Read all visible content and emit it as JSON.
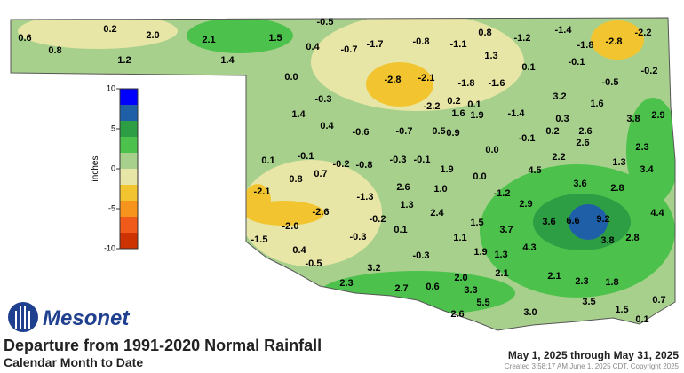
{
  "header": {
    "logo": "Mesonet",
    "title": "Departure from 1991-2020 Normal Rainfall",
    "subtitle": "Calendar Month to Date",
    "period": "May 1, 2025 through May 31, 2025",
    "created": "Created 3:58:17 AM June 1, 2025 CDT. Copyright 2025"
  },
  "legend": {
    "unit": "inches",
    "colors": [
      "#0000ff",
      "#1f5fa8",
      "#2e9e45",
      "#4cc24c",
      "#a8d08d",
      "#e8e6a6",
      "#f2c530",
      "#f7941d",
      "#f05a1a",
      "#cc3300"
    ],
    "ticks": [
      10,
      5,
      0,
      -5,
      -10
    ],
    "range": [
      -10,
      10
    ]
  },
  "map_labels": [
    "0.6",
    "0.8",
    "0.2",
    "2.0",
    "1.2",
    "2.1",
    "1.4",
    "1.5",
    "-0.5",
    "0.4",
    "-0.7",
    "-1.7",
    "-0.8",
    "-1.1",
    "0.8",
    "-1.2",
    "-1.4",
    "-1.8",
    "-2.8",
    "-2.2",
    "0.0",
    "1.3",
    "0.1",
    "-0.1",
    "-0.5",
    "-0.2",
    "-2.8",
    "-2.1",
    "-1.8",
    "-1.6",
    "3.2",
    "1.6",
    "-0.3",
    "-2.2",
    "0.2",
    "0.1",
    "1.6",
    "1.9",
    "-1.4",
    "0.3",
    "3.8",
    "2.9",
    "1.4",
    "0.4",
    "-0.6",
    "-0.7",
    "0.5",
    "0.9",
    "0.2",
    "2.6",
    "-0.1",
    "2.6",
    "2.3",
    "0.1",
    "-0.1",
    "-0.2",
    "-0.8",
    "-0.3",
    "-0.1",
    "0.0",
    "2.2",
    "1.3",
    "3.4",
    "0.8",
    "0.7",
    "1.9",
    "0.0",
    "4.5",
    "-2.1",
    "2.6",
    "1.0",
    "-1.3",
    "3.6",
    "2.8",
    "-1.2",
    "1.3",
    "-2.6",
    "2.9",
    "4.4",
    "3.6",
    "6.6",
    "9.2",
    "-2.0",
    "2.4",
    "-0.2",
    "1.5",
    "3.7",
    "0.1",
    "-1.5",
    "0.4",
    "-0.3",
    "1.1",
    "3.8",
    "2.8",
    "4.3",
    "1.9",
    "1.3",
    "-0.3",
    "-0.5",
    "3.2",
    "2.1",
    "2.1",
    "2.3",
    "2.7",
    "0.6",
    "2.0",
    "2.3",
    "1.8",
    "3.3",
    "0.7",
    "5.5",
    "3.0",
    "3.5",
    "1.5",
    "0.1",
    "2.6"
  ]
}
